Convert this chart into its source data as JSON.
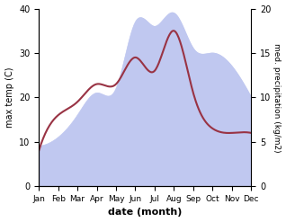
{
  "months": [
    "Jan",
    "Feb",
    "Mar",
    "Apr",
    "May",
    "Jun",
    "Jul",
    "Aug",
    "Sep",
    "Oct",
    "Nov",
    "Dec"
  ],
  "temp_max": [
    8,
    16,
    19,
    23,
    23,
    29,
    26,
    35,
    21,
    13,
    12,
    12
  ],
  "precip_kg": [
    4.5,
    5.5,
    8,
    10.5,
    11,
    18.5,
    18,
    19.5,
    15.5,
    15,
    13.5,
    10
  ],
  "temp_color": "#993344",
  "precip_fill_color": "#c0c8f0",
  "left_ylabel": "max temp (C)",
  "right_ylabel": "med. precipitation (kg/m2)",
  "xlabel": "date (month)",
  "temp_ylim": [
    0,
    40
  ],
  "precip_ylim_kg": [
    0,
    20
  ],
  "precip_yticks_kg": [
    0,
    5,
    10,
    15,
    20
  ],
  "temp_yticks": [
    0,
    10,
    20,
    30,
    40
  ],
  "bg_color": "#ffffff"
}
